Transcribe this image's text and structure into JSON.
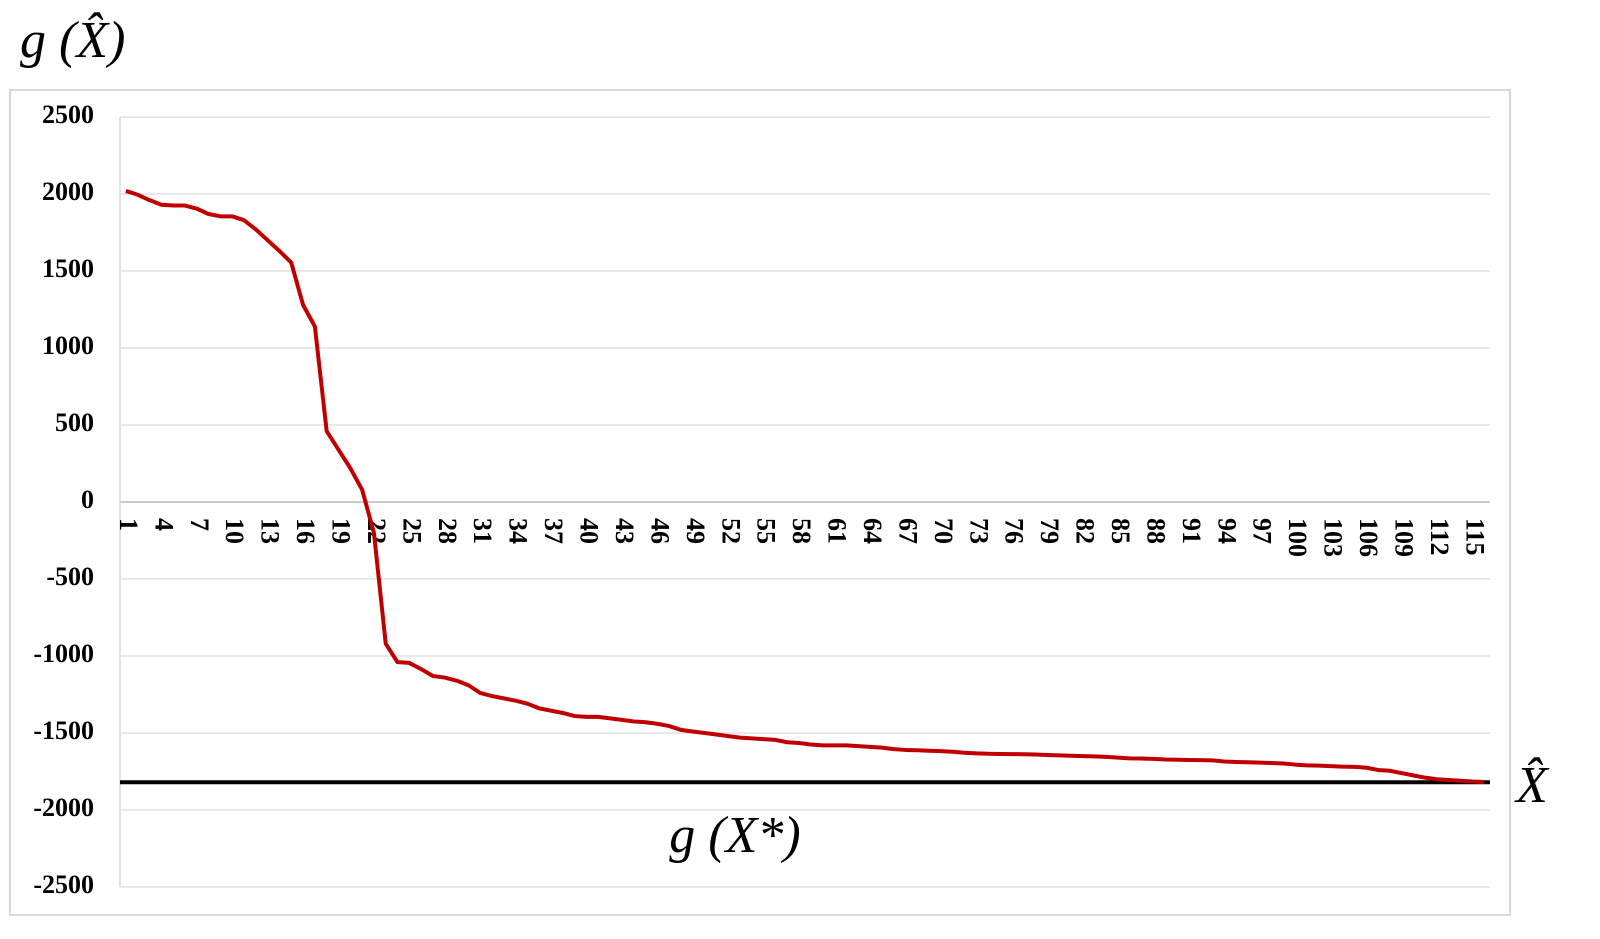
{
  "chart_data": {
    "type": "line",
    "y_axis_label": "g (X̂)",
    "x_axis_label": "X̂",
    "categories": [
      "1",
      null,
      null,
      "4",
      null,
      null,
      "7",
      null,
      null,
      "10",
      null,
      null,
      "13",
      null,
      null,
      "16",
      null,
      null,
      "19",
      null,
      null,
      "22",
      null,
      null,
      "25",
      null,
      null,
      "28",
      null,
      null,
      "31",
      null,
      null,
      "34",
      null,
      null,
      "37",
      null,
      null,
      "40",
      null,
      null,
      "43",
      null,
      null,
      "46",
      null,
      null,
      "49",
      null,
      null,
      "52",
      null,
      null,
      "55",
      null,
      null,
      "58",
      null,
      null,
      "61",
      null,
      null,
      "64",
      null,
      null,
      "67",
      null,
      null,
      "70",
      null,
      null,
      "73",
      null,
      null,
      "76",
      null,
      null,
      "79",
      null,
      null,
      "82",
      null,
      null,
      "85",
      null,
      null,
      "88",
      null,
      null,
      "91",
      null,
      null,
      "94",
      null,
      null,
      "97",
      null,
      null,
      "100",
      null,
      null,
      "103",
      null,
      null,
      "106",
      null,
      null,
      "109",
      null,
      null,
      "112",
      null,
      null,
      "115",
      null
    ],
    "series": [
      {
        "color": "#c00000",
        "values": [
          2020,
          1995,
          1960,
          1930,
          1925,
          1925,
          1905,
          1870,
          1855,
          1855,
          1830,
          1770,
          1700,
          1630,
          1555,
          1280,
          1140,
          460,
          340,
          220,
          80,
          -200,
          -920,
          -1040,
          -1045,
          -1085,
          -1130,
          -1140,
          -1160,
          -1190,
          -1240,
          -1260,
          -1275,
          -1290,
          -1310,
          -1340,
          -1355,
          -1370,
          -1390,
          -1395,
          -1395,
          -1405,
          -1415,
          -1425,
          -1430,
          -1440,
          -1455,
          -1480,
          -1490,
          -1500,
          -1510,
          -1520,
          -1530,
          -1535,
          -1540,
          -1545,
          -1560,
          -1565,
          -1575,
          -1580,
          -1580,
          -1580,
          -1585,
          -1590,
          -1595,
          -1605,
          -1610,
          -1612,
          -1615,
          -1618,
          -1622,
          -1628,
          -1632,
          -1635,
          -1636,
          -1637,
          -1638,
          -1640,
          -1643,
          -1645,
          -1648,
          -1650,
          -1652,
          -1655,
          -1660,
          -1665,
          -1666,
          -1668,
          -1672,
          -1674,
          -1675,
          -1676,
          -1678,
          -1685,
          -1688,
          -1690,
          -1692,
          -1695,
          -1698,
          -1705,
          -1710,
          -1712,
          -1715,
          -1718,
          -1720,
          -1725,
          -1740,
          -1745,
          -1760,
          -1775,
          -1790,
          -1800,
          -1805,
          -1810,
          -1815,
          -1818
        ]
      }
    ],
    "reference_line": {
      "value": -1820,
      "label": "g (X*)",
      "color": "#000000"
    },
    "ylim": [
      -2500,
      2500
    ],
    "yticks": [
      2500,
      2000,
      1500,
      1000,
      500,
      0,
      -500,
      -1000,
      -1500,
      -2000,
      -2500
    ],
    "grid": true
  }
}
